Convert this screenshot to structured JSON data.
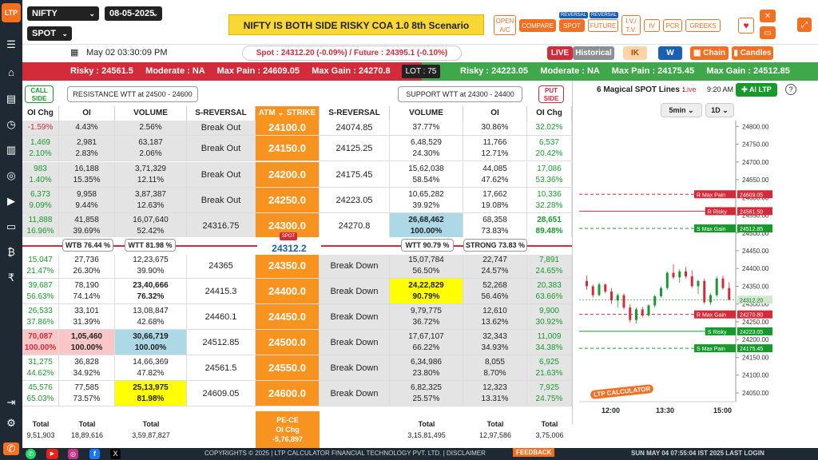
{
  "sidebar": {
    "logo": "LTP"
  },
  "top": {
    "symbol": "NIFTY",
    "expiry": "08-05-2025",
    "mode": "SPOT",
    "banner": "NIFTY IS BOTH SIDE RISKY COA 1.0 8th Scenario",
    "open_ac": "OPEN A/C",
    "compare": "COMPARE",
    "spot": "SPOT",
    "future": "FUTURE",
    "reversal_tag": "REVERSAL",
    "iv_tv": "I.V./ T.V.",
    "iv": "IV",
    "pcr": "PCR",
    "greeks": "GREEKS"
  },
  "datebar": {
    "datetime": "May 02 03:30:09 PM",
    "spot_future": "Spot : 24312.20 (-0.09%)  /  Future : 24395.1 (-0.10%)",
    "live": "LIVE",
    "historical": "Historical",
    "ik": "IK",
    "w": "W",
    "chain": "Chain",
    "candles": "Candles"
  },
  "riskbar": {
    "left": "Risky : 24561.5     Moderate : NA     Max Pain : 24609.05     Max Gain : 24270.8",
    "lot": "LOT : 75",
    "right": "Risky : 24223.05     Moderate : NA     Max Pain : 24175.45     Max Gain : 24512.85"
  },
  "wtt": {
    "call_side": "CALL SIDE",
    "resistance": "RESISTANCE WTT at 24500 - 24600",
    "support": "SUPPORT WTT at 24300 - 24400",
    "put_side": "PUT SIDE"
  },
  "headers": [
    "OI Chg",
    "OI",
    "VOLUME",
    "S-REVERSAL",
    "ATM ⌄  STRIKE",
    "S-REVERSAL",
    "VOLUME",
    "OI",
    "OI Chg"
  ],
  "rows": [
    {
      "c_oic": "-1.59%",
      "c_oi": "4.43%",
      "c_vol": "2.56%",
      "c_rev": "Break Out",
      "strike": "24100.0",
      "p_rev": "24074.85",
      "p_vol": "37.77%",
      "p_oi": "30.86%",
      "p_oic": "32.02%"
    },
    {
      "c_oic": "1,469\n2.10%",
      "c_oi": "2,981\n2.83%",
      "c_vol": "63,187\n2.06%",
      "c_rev": "Break Out",
      "strike": "24150.0",
      "p_rev": "24125.25",
      "p_vol": "6,48,529\n24.30%",
      "p_oi": "11,766\n12.71%",
      "p_oic": "6,537\n20.42%"
    },
    {
      "c_oic": "983\n1.40%",
      "c_oi": "16,188\n15.35%",
      "c_vol": "3,71,329\n12.11%",
      "c_rev": "Break Out",
      "strike": "24200.0",
      "p_rev": "24175.45",
      "p_vol": "15,62,038\n58.54%",
      "p_oi": "44,085\n47.62%",
      "p_oic": "17,086\n53.36%"
    },
    {
      "c_oic": "6,373\n9.09%",
      "c_oi": "9,958\n9.44%",
      "c_vol": "3,87,387\n12.63%",
      "c_rev": "Break Out",
      "strike": "24250.0",
      "p_rev": "24223.05",
      "p_vol": "10,65,282\n39.92%",
      "p_oi": "17,662\n19.08%",
      "p_oic": "10,336\n32.28%"
    },
    {
      "c_oic": "11,888\n16.96%",
      "c_oi": "41,858\n39.69%",
      "c_vol": "16,07,640\n52.42%",
      "c_rev": "24316.75",
      "strike": "24300.0",
      "p_rev": "24270.8",
      "p_vol": "26,68,462\n100.00%",
      "p_oi": "68,358\n73.83%",
      "p_oic": "28,651\n89.48%"
    },
    {
      "c_oic": "15,047\n21.47%",
      "c_oi": "27,736\n26.30%",
      "c_vol": "12,23,675\n39.90%",
      "c_rev": "24365",
      "strike": "24350.0",
      "p_rev": "Break Down",
      "p_vol": "15,07,784\n56.50%",
      "p_oi": "22,747\n24.57%",
      "p_oic": "7,891\n24.65%"
    },
    {
      "c_oic": "39,687\n56.63%",
      "c_oi": "78,190\n74.14%",
      "c_vol": "23,40,666\n76.32%",
      "c_rev": "24415.3",
      "strike": "24400.0",
      "p_rev": "Break Down",
      "p_vol": "24,22,829\n90.79%",
      "p_oi": "52,268\n56.46%",
      "p_oic": "20,383\n63.66%"
    },
    {
      "c_oic": "26,533\n37.86%",
      "c_oi": "33,101\n31.39%",
      "c_vol": "13,08,847\n42.68%",
      "c_rev": "24460.1",
      "strike": "24450.0",
      "p_rev": "Break Down",
      "p_vol": "9,79,775\n36.72%",
      "p_oi": "12,610\n13.62%",
      "p_oic": "9,900\n30.92%"
    },
    {
      "c_oic": "70,087\n100.00%",
      "c_oi": "1,05,460\n100.00%",
      "c_vol": "30,66,719\n100.00%",
      "c_rev": "24512.85",
      "strike": "24500.0",
      "p_rev": "Break Down",
      "p_vol": "17,67,107\n66.22%",
      "p_oi": "32,343\n34.93%",
      "p_oic": "11,009\n34.38%"
    },
    {
      "c_oic": "31,275\n44.62%",
      "c_oi": "36,828\n34.92%",
      "c_vol": "14,66,369\n47.82%",
      "c_rev": "24561.5",
      "strike": "24550.0",
      "p_rev": "Break Down",
      "p_vol": "6,34,986\n23.80%",
      "p_oi": "8,055\n8.70%",
      "p_oic": "6,925\n21.63%"
    },
    {
      "c_oic": "45,576\n65.03%",
      "c_oi": "77,585\n73.57%",
      "c_vol": "25,13,975\n81.98%",
      "c_rev": "24609.05",
      "strike": "24600.0",
      "p_rev": "Break Down",
      "p_vol": "6,82,325\n25.57%",
      "p_oi": "12,323\n13.31%",
      "p_oic": "7,925\n24.75%"
    }
  ],
  "mid": {
    "wtb_call": "WTB 76.44 %",
    "wtt_call": "WTT 81.98 %",
    "spot_tag": "SPOT",
    "spot": "24312.2",
    "wtt_put": "WTT 90.79 %",
    "strong_put": "STRONG 73.83 %"
  },
  "totals": {
    "label": "Total",
    "c_oic": "9,51,903",
    "c_oi": "18,89,616",
    "c_vol": "3,59,87,827",
    "pece": "PE-CE\nOI Chg\n-5,76,897",
    "p_vol": "3,15,81,495",
    "p_oi": "12,97,586",
    "p_oic": "3,75,006"
  },
  "chart": {
    "title": "6 Magical SPOT Lines :",
    "live": "Live",
    "time": "9:20 AM",
    "ai": "AI LTP",
    "tf": "5min",
    "range": "1D",
    "xticks": [
      "12:00",
      "13:30",
      "15:00"
    ],
    "yticks": [
      "24800.00",
      "24750.00",
      "24700.00",
      "24650.00",
      "24600.00",
      "24550.00",
      "24500.00",
      "24450.00",
      "24400.00",
      "24350.00",
      "24300.00",
      "24250.00",
      "24200.00",
      "24150.00",
      "24100.00",
      "24050.00"
    ],
    "lines": [
      {
        "label": "R Max Pain",
        "value": "24609.05",
        "color": "#d42b3a"
      },
      {
        "label": "R Risky",
        "value": "24561.50",
        "color": "#d42b3a"
      },
      {
        "label": "S Max Gain",
        "value": "24512.85",
        "color": "#169b2b"
      },
      {
        "label": "R Max Gain",
        "value": "24270.80",
        "color": "#d42b3a"
      },
      {
        "label": "S Risky",
        "value": "24223.05",
        "color": "#169b2b"
      },
      {
        "label": "S Max Pain",
        "value": "24175.45",
        "color": "#169b2b"
      }
    ],
    "price": "24312.20",
    "brand": "LTP CALCULATOR"
  },
  "footer": {
    "copyright": "COPYRIGHTS © 2025 | LTP CALCULATOR FINANCIAL TECHNOLOGY PVT. LTD. |  DISCLAIMER",
    "feedback": "FEEDBACK",
    "updated": "SUN MAY 04 07:55:04 IST 2025 LAST LOGIN"
  }
}
